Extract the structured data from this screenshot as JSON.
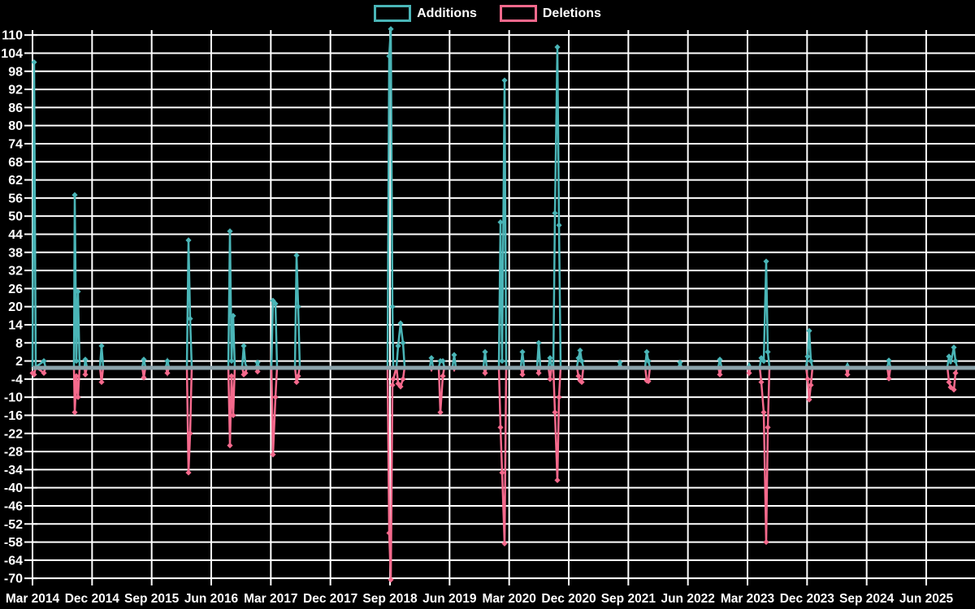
{
  "legend": {
    "items": [
      {
        "label": "Additions",
        "color": "#4ab5b7"
      },
      {
        "label": "Deletions",
        "color": "#f4698c"
      }
    ]
  },
  "chart_data": {
    "type": "line",
    "title": "",
    "xlabel": "",
    "ylabel": "",
    "legend_position": "top-center",
    "grid": true,
    "background": "#000000",
    "colors": {
      "additions": "#4ab5b7",
      "deletions": "#f4698c",
      "zero_line": "#8ca3ab",
      "grid": "#ffffff",
      "text": "#ffffff"
    },
    "y_axis": {
      "min": -70,
      "max": 110,
      "step": 6
    },
    "x_tick_labels": [
      "Mar 2014",
      "Dec 2014",
      "Sep 2015",
      "Jun 2016",
      "Mar 2017",
      "Dec 2017",
      "Sep 2018",
      "Jun 2019",
      "Mar 2020",
      "Dec 2020",
      "Sep 2021",
      "Jun 2022",
      "Mar 2023",
      "Dec 2023",
      "Sep 2024",
      "Jun 2025"
    ],
    "x_unit": "pixels from image left edge; axis origin x=40, one 9-month tick interval = 73.33px",
    "series_names": [
      "Additions",
      "Deletions"
    ],
    "points_format": [
      "x_px",
      "additions",
      "deletions"
    ],
    "points": [
      [
        40,
        0,
        -2
      ],
      [
        42,
        101,
        -2.5
      ],
      [
        44,
        0,
        0
      ],
      [
        54,
        2,
        -2
      ],
      [
        56,
        0,
        0
      ],
      [
        91,
        0,
        0
      ],
      [
        92,
        57,
        -15
      ],
      [
        94,
        2,
        -3
      ],
      [
        96,
        25,
        -10
      ],
      [
        98,
        0,
        0
      ],
      [
        104,
        0,
        0
      ],
      [
        105,
        2.5,
        -2.5
      ],
      [
        107,
        0,
        0
      ],
      [
        123,
        0,
        0
      ],
      [
        125,
        7,
        -5
      ],
      [
        127,
        0,
        0
      ],
      [
        175,
        0,
        0
      ],
      [
        177,
        2.5,
        -3.5
      ],
      [
        179,
        0,
        0
      ],
      [
        204,
        0,
        0
      ],
      [
        206,
        2,
        -2
      ],
      [
        208,
        0,
        0
      ],
      [
        230,
        0,
        0
      ],
      [
        232,
        42,
        -35
      ],
      [
        234,
        16,
        -22
      ],
      [
        236,
        0,
        0
      ],
      [
        281,
        0,
        0
      ],
      [
        283,
        45,
        -26
      ],
      [
        285,
        2,
        -3
      ],
      [
        287,
        17,
        -16
      ],
      [
        289,
        0,
        0
      ],
      [
        298,
        0,
        0
      ],
      [
        300,
        7,
        -2.5
      ],
      [
        302,
        1,
        -2
      ],
      [
        304,
        0,
        0
      ],
      [
        315,
        0,
        0
      ],
      [
        317,
        1.5,
        -1.5
      ],
      [
        319,
        0,
        0
      ],
      [
        334,
        0,
        0
      ],
      [
        336,
        22,
        -29
      ],
      [
        339,
        21,
        -10
      ],
      [
        341,
        0,
        0
      ],
      [
        363,
        0,
        0
      ],
      [
        365,
        37,
        -5
      ],
      [
        367,
        20,
        -3
      ],
      [
        369,
        0,
        0
      ],
      [
        477,
        0,
        0
      ],
      [
        479,
        103,
        -55
      ],
      [
        481,
        112,
        -70.5
      ],
      [
        483,
        20,
        -6
      ],
      [
        484,
        0,
        -4
      ],
      [
        488,
        0,
        0
      ],
      [
        490,
        7,
        -5.5
      ],
      [
        493,
        14.5,
        -6.5
      ],
      [
        496,
        8,
        -4
      ],
      [
        498,
        0,
        0
      ],
      [
        529,
        0,
        0
      ],
      [
        531,
        3,
        -1
      ],
      [
        533,
        0,
        0
      ],
      [
        540,
        0,
        0
      ],
      [
        542,
        2,
        -15
      ],
      [
        545,
        2,
        -3
      ],
      [
        547,
        0,
        0
      ],
      [
        557,
        0,
        0
      ],
      [
        559,
        4,
        -1
      ],
      [
        561,
        0,
        0
      ],
      [
        595,
        0,
        0
      ],
      [
        597,
        5,
        -2
      ],
      [
        599,
        0,
        0
      ],
      [
        614,
        0,
        0
      ],
      [
        616,
        48,
        -20
      ],
      [
        618,
        2,
        -35
      ],
      [
        621,
        95,
        -58.5
      ],
      [
        623,
        0,
        0
      ],
      [
        641,
        0,
        0
      ],
      [
        643,
        5,
        -2.5
      ],
      [
        645,
        0,
        0
      ],
      [
        661,
        0,
        0
      ],
      [
        663,
        8,
        -2
      ],
      [
        665,
        0,
        0
      ],
      [
        675,
        0,
        0
      ],
      [
        677,
        3,
        -4
      ],
      [
        679,
        0,
        0
      ],
      [
        681,
        0,
        0
      ],
      [
        683,
        51,
        -15
      ],
      [
        686,
        106,
        -37.5
      ],
      [
        688,
        47,
        -10
      ],
      [
        690,
        0,
        0
      ],
      [
        710,
        0,
        0
      ],
      [
        712,
        3,
        -3
      ],
      [
        714,
        5.5,
        -4.5
      ],
      [
        716,
        2,
        -5
      ],
      [
        718,
        0,
        0
      ],
      [
        761,
        0,
        0
      ],
      [
        763,
        1.5,
        -0.5
      ],
      [
        765,
        0,
        0
      ],
      [
        794,
        0,
        0
      ],
      [
        796,
        5,
        -4.5
      ],
      [
        798,
        2,
        -4.7
      ],
      [
        800,
        0,
        0
      ],
      [
        835,
        0,
        0
      ],
      [
        837,
        1.5,
        -0.5
      ],
      [
        839,
        0,
        0
      ],
      [
        884,
        0,
        0
      ],
      [
        886,
        2.5,
        -2.5
      ],
      [
        888,
        0,
        0
      ],
      [
        920,
        0,
        0
      ],
      [
        922,
        1,
        -2
      ],
      [
        924,
        0,
        0
      ],
      [
        935,
        0,
        0
      ],
      [
        937,
        3,
        -5
      ],
      [
        940,
        2,
        -15
      ],
      [
        943,
        35,
        -58
      ],
      [
        945,
        5,
        -20
      ],
      [
        947,
        0,
        0
      ],
      [
        992,
        0,
        0
      ],
      [
        994,
        3.5,
        -4
      ],
      [
        996,
        12,
        -10.8
      ],
      [
        998,
        2,
        -6
      ],
      [
        1000,
        0,
        0
      ],
      [
        1041,
        0,
        0
      ],
      [
        1043,
        1,
        -2.5
      ],
      [
        1045,
        0,
        0
      ],
      [
        1092,
        0,
        0
      ],
      [
        1094,
        2.2,
        -3.8
      ],
      [
        1096,
        0,
        0
      ],
      [
        1166,
        0,
        0
      ],
      [
        1168,
        3.5,
        -5
      ],
      [
        1170,
        1,
        -6.7
      ],
      [
        1174,
        6.5,
        -7.5
      ],
      [
        1176,
        2,
        -2
      ],
      [
        1178,
        0,
        0
      ],
      [
        1200,
        0,
        0
      ]
    ]
  }
}
